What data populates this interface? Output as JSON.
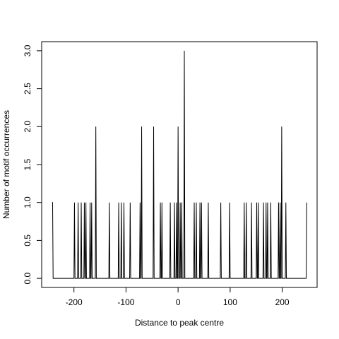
{
  "chart_data": {
    "type": "line",
    "x_label": "Distance to peak centre",
    "y_label": "Number of motif occurrences",
    "xlim": [
      -262,
      267
    ],
    "ylim": [
      -0.12,
      3.12
    ],
    "xticks": [
      -200,
      -100,
      0,
      100,
      200
    ],
    "yticks": [
      {
        "value": 0,
        "label": "0.0"
      },
      {
        "value": 0.5,
        "label": "0.5"
      },
      {
        "value": 1,
        "label": "1.0"
      },
      {
        "value": 1.5,
        "label": "1.5"
      },
      {
        "value": 2,
        "label": "2.0"
      },
      {
        "value": 2.5,
        "label": "2.5"
      },
      {
        "value": 3,
        "label": "3.0"
      }
    ],
    "color": "#000000",
    "x": [
      -242,
      -241,
      -240,
      -200,
      -199,
      -198,
      -193,
      -192,
      -191,
      -187,
      -186,
      -185,
      -181,
      -180,
      -179,
      -178,
      -177,
      -176,
      -170,
      -169,
      -168,
      -167,
      -166,
      -165,
      -159,
      -158,
      -157,
      -133,
      -132,
      -131,
      -115,
      -114,
      -113,
      -110,
      -109,
      -108,
      -105,
      -104,
      -103,
      -93,
      -92,
      -91,
      -74,
      -73,
      -72,
      -71,
      -70,
      -69,
      -48,
      -47,
      -46,
      -35,
      -34,
      -33,
      -32,
      -31,
      -30,
      -16,
      -15,
      -14,
      -8,
      -7,
      -6,
      -4,
      -3,
      -2,
      -1,
      0,
      1,
      3,
      4,
      5,
      6,
      7,
      8,
      11,
      12,
      13,
      30,
      31,
      32,
      34,
      35,
      36,
      41,
      42,
      43,
      44,
      45,
      46,
      57,
      58,
      59,
      81,
      82,
      83,
      98,
      99,
      100,
      126,
      127,
      128,
      130,
      131,
      132,
      140,
      141,
      142,
      150,
      151,
      152,
      153,
      154,
      155,
      163,
      164,
      165,
      168,
      169,
      170,
      171,
      172,
      173,
      177,
      178,
      179,
      192,
      193,
      194,
      195,
      196,
      197,
      198,
      199,
      200,
      206,
      207,
      208,
      246,
      247
    ],
    "values": [
      1,
      1,
      0,
      0,
      1,
      0,
      0,
      1,
      0,
      0,
      1,
      0,
      0,
      1,
      0,
      0,
      1,
      0,
      0,
      1,
      0,
      0,
      1,
      0,
      0,
      2,
      0,
      0,
      1,
      0,
      0,
      1,
      0,
      0,
      1,
      0,
      0,
      1,
      0,
      0,
      1,
      0,
      0,
      1,
      0,
      0,
      2,
      0,
      0,
      2,
      0,
      0,
      1,
      0,
      0,
      1,
      0,
      0,
      1,
      0,
      0,
      1,
      0,
      0,
      1,
      0,
      0,
      2,
      0,
      0,
      1,
      0,
      0,
      1,
      0,
      0,
      3,
      0,
      0,
      1,
      0,
      0,
      1,
      0,
      0,
      1,
      0,
      0,
      1,
      0,
      0,
      1,
      0,
      0,
      1,
      0,
      0,
      1,
      0,
      0,
      1,
      0,
      0,
      1,
      0,
      0,
      1,
      0,
      0,
      1,
      0,
      0,
      1,
      0,
      0,
      1,
      0,
      0,
      1,
      0,
      0,
      1,
      0,
      0,
      1,
      0,
      0,
      1,
      0,
      0,
      1,
      0,
      0,
      2,
      0,
      0,
      1,
      0,
      0,
      1
    ]
  }
}
